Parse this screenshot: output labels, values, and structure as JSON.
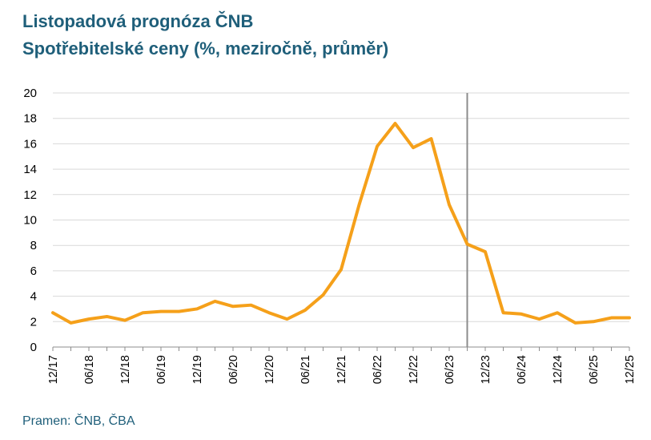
{
  "header": {
    "title_line1": "Listopadová prognóza ČNB",
    "title_line2": "Spotřebitelské ceny  (%, meziročně, průměr)"
  },
  "footer": {
    "source": "Pramen: ČNB, ČBA"
  },
  "chart_data": {
    "type": "line",
    "title": "Listopadová prognóza ČNB",
    "subtitle": "Spotřebitelské ceny  (%, meziročně, průměr)",
    "xlabel": "",
    "ylabel": "",
    "ylim": [
      0,
      20
    ],
    "yticks": [
      0,
      2,
      4,
      6,
      8,
      10,
      12,
      14,
      16,
      18,
      20
    ],
    "grid": true,
    "x_tick_labels": [
      "12/17",
      "06/18",
      "12/18",
      "06/19",
      "12/19",
      "06/20",
      "12/20",
      "06/21",
      "12/21",
      "06/22",
      "12/22",
      "06/23",
      "12/23",
      "06/24",
      "12/24",
      "06/25",
      "12/25"
    ],
    "forecast_start_quarter": 23,
    "series": [
      {
        "name": "Spotřebitelské ceny",
        "color": "#f5a01a",
        "quarters": [
          "Q4/17",
          "Q1/18",
          "Q2/18",
          "Q3/18",
          "Q4/18",
          "Q1/19",
          "Q2/19",
          "Q3/19",
          "Q4/19",
          "Q1/20",
          "Q2/20",
          "Q3/20",
          "Q4/20",
          "Q1/21",
          "Q2/21",
          "Q3/21",
          "Q4/21",
          "Q1/22",
          "Q2/22",
          "Q3/22",
          "Q4/22",
          "Q1/23",
          "Q2/23",
          "Q3/23",
          "Q4/23",
          "Q1/24",
          "Q2/24",
          "Q3/24",
          "Q4/24",
          "Q1/25",
          "Q2/25",
          "Q3/25",
          "Q4/25"
        ],
        "values": [
          2.7,
          1.9,
          2.2,
          2.4,
          2.1,
          2.7,
          2.8,
          2.8,
          3.0,
          3.6,
          3.2,
          3.3,
          2.7,
          2.2,
          2.9,
          4.1,
          6.1,
          11.2,
          15.8,
          17.6,
          15.7,
          16.4,
          11.2,
          8.1,
          7.5,
          2.7,
          2.6,
          2.2,
          2.7,
          1.9,
          2.0,
          2.3,
          2.3
        ]
      }
    ]
  }
}
